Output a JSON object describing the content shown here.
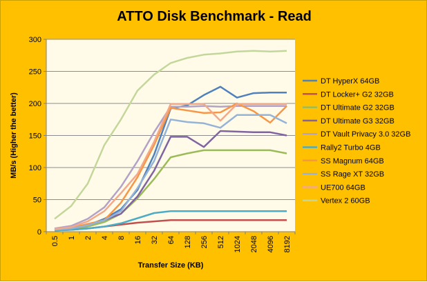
{
  "chart_data": {
    "type": "line",
    "title": "ATTO Disk Benchmark - Read",
    "xlabel": "Transfer Size (KB)",
    "ylabel": "MB/s (Higher the better)",
    "ylim": [
      0,
      300
    ],
    "yticks": [
      0,
      50,
      100,
      150,
      200,
      250,
      300
    ],
    "grid": true,
    "legend": "right",
    "categories": [
      "0.5",
      "1",
      "2",
      "4",
      "8",
      "16",
      "32",
      "64",
      "128",
      "256",
      "512",
      "1024",
      "2048",
      "4096",
      "8192"
    ],
    "series": [
      {
        "name": "DT HyperX 64GB",
        "color": "#4f81bd",
        "values": [
          3,
          5,
          10,
          20,
          35,
          65,
          120,
          192,
          197,
          213,
          226,
          209,
          216,
          217,
          217
        ]
      },
      {
        "name": "DT Locker+ G2 32GB",
        "color": "#c0504d",
        "values": [
          2,
          3,
          5,
          8,
          11,
          14,
          16,
          18,
          18,
          18,
          18,
          18,
          18,
          18,
          18
        ]
      },
      {
        "name": "DT Ultimate G2 32GB",
        "color": "#9bbb59",
        "values": [
          2,
          4,
          8,
          15,
          28,
          52,
          82,
          116,
          122,
          127,
          127,
          127,
          127,
          127,
          122
        ]
      },
      {
        "name": "DT Ultimate G3 32GB",
        "color": "#8064a2",
        "values": [
          3,
          5,
          10,
          18,
          28,
          55,
          95,
          148,
          148,
          132,
          157,
          156,
          155,
          155,
          150
        ]
      },
      {
        "name": "DT Vault Privacy 3.0 32GB",
        "color": "#b3a2c7",
        "values": [
          5,
          9,
          20,
          38,
          70,
          110,
          155,
          195,
          195,
          196,
          195,
          196,
          196,
          196,
          196
        ]
      },
      {
        "name": "Rally2 Turbo 4GB",
        "color": "#4bacc6",
        "values": [
          2,
          3,
          5,
          8,
          13,
          21,
          29,
          32,
          32,
          32,
          32,
          32,
          32,
          32,
          32
        ]
      },
      {
        "name": "SS Magnum 64GB",
        "color": "#f79646",
        "values": [
          4,
          6,
          12,
          18,
          45,
          85,
          135,
          193,
          189,
          185,
          186,
          200,
          188,
          170,
          196
        ]
      },
      {
        "name": "SS Rage XT 32GB",
        "color": "#95b3d7",
        "values": [
          3,
          5,
          10,
          18,
          32,
          68,
          110,
          175,
          171,
          169,
          162,
          182,
          182,
          182,
          169
        ]
      },
      {
        "name": "UE700 64GB",
        "color": "#f2a98a",
        "values": [
          4,
          7,
          16,
          32,
          60,
          90,
          140,
          199,
          199,
          199,
          173,
          199,
          199,
          199,
          199
        ]
      },
      {
        "name": "Vertex 2 60GB",
        "color": "#c4d79b",
        "values": [
          20,
          40,
          75,
          135,
          175,
          220,
          245,
          263,
          271,
          276,
          278,
          281,
          282,
          281,
          282
        ]
      }
    ]
  }
}
